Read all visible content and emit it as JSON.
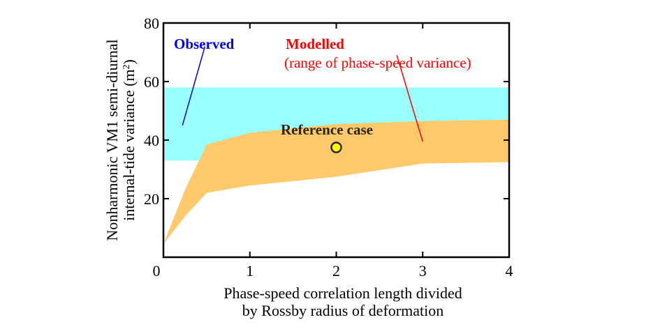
{
  "chart_data": {
    "type": "area",
    "title": "",
    "xlabel_lines": [
      "Phase-speed correlation length divided",
      "by Rossby radius of deformation"
    ],
    "ylabel_lines": [
      "Nonharmonic VM1 semi-diurnal",
      "internal-tide variance (m",
      "2",
      ")"
    ],
    "xlim": [
      0,
      4
    ],
    "ylim": [
      0,
      80
    ],
    "xticks": [
      0,
      1,
      2,
      3,
      4
    ],
    "yticks": [
      20,
      40,
      60,
      80
    ],
    "xtick_labels": [
      "0",
      "1",
      "2",
      "3",
      "4"
    ],
    "ytick_labels": [
      "20",
      "40",
      "60",
      "80"
    ],
    "grid": false,
    "series": [
      {
        "name": "Observed",
        "kind": "band",
        "color": "#99ffff",
        "y_low": 33,
        "y_high": 58
      },
      {
        "name": "Modelled (range of phase-speed variance)",
        "kind": "range-area",
        "color": "#fdc96a",
        "x": [
          0,
          0.25,
          0.5,
          1,
          2,
          3,
          4
        ],
        "y_high": [
          4.5,
          23,
          38.5,
          42.5,
          45.5,
          46.5,
          47
        ],
        "y_low": [
          4.5,
          14,
          22,
          24.5,
          27.5,
          32,
          32.5
        ]
      },
      {
        "name": "Reference case",
        "kind": "point",
        "color": "#ffff00",
        "edge_color": "#2b2410",
        "x": 2,
        "y": 37.5
      }
    ],
    "annotations": [
      {
        "id": "observed",
        "lines": [
          "Observed"
        ],
        "color": "#0000ee",
        "bold": true,
        "leader_from": [
          0.48,
          72
        ],
        "leader_to": [
          0.22,
          45
        ]
      },
      {
        "id": "modelled",
        "lines": [
          "Modelled",
          "(range of phase-speed variance)"
        ],
        "color": "#ff0000",
        "bold_first_line": true,
        "leader_from": [
          2.7,
          69
        ],
        "leader_to": [
          3.0,
          39.5
        ]
      },
      {
        "id": "reference",
        "lines": [
          "Reference case"
        ],
        "color": "#2b2410",
        "bold": true
      }
    ]
  }
}
